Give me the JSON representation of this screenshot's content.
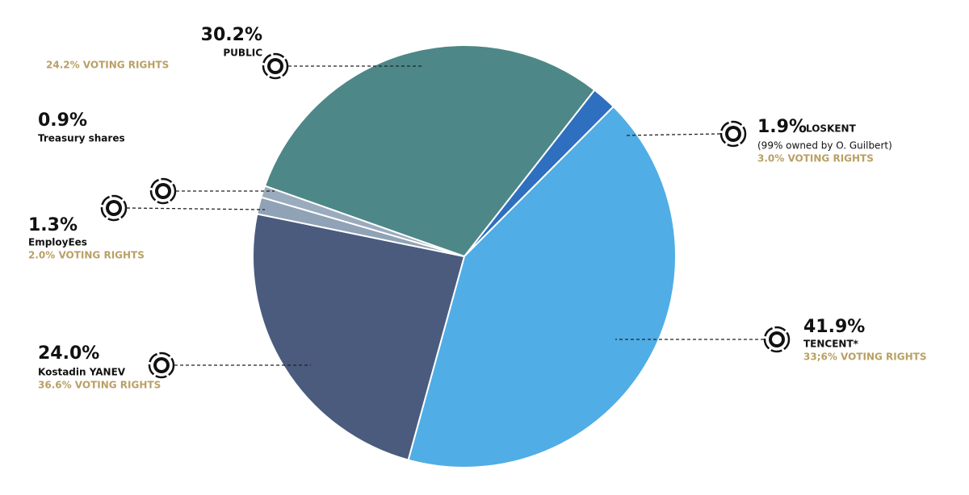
{
  "chart_data": {
    "type": "pie",
    "categories": [
      "LOSKENT",
      "TENCENT*",
      "Kostadin YANEV",
      "EmployEes",
      "Treasury shares",
      "PUBLIC"
    ],
    "values": [
      1.9,
      41.9,
      24.0,
      1.3,
      0.9,
      30.2
    ],
    "value_labels": [
      "1.9%",
      "41.9%",
      "24.0%",
      "1.3%",
      "0.9%",
      "30.2%"
    ],
    "notes": [
      "(99% owned by O. Guilbert)",
      null,
      null,
      null,
      null,
      null
    ],
    "voting_rights": [
      "3.0% VOTING RIGHTS",
      "33;6% VOTING RIGHTS",
      "36.6% VOTING RIGHTS",
      "2.0% VOTING RIGHTS",
      null,
      "24.2% VOTING RIGHTS"
    ],
    "colors": [
      "#2f6fbf",
      "#50ade6",
      "#4a5b7e",
      "#8fa2b6",
      "#9aabbd",
      "#4e8787"
    ]
  }
}
